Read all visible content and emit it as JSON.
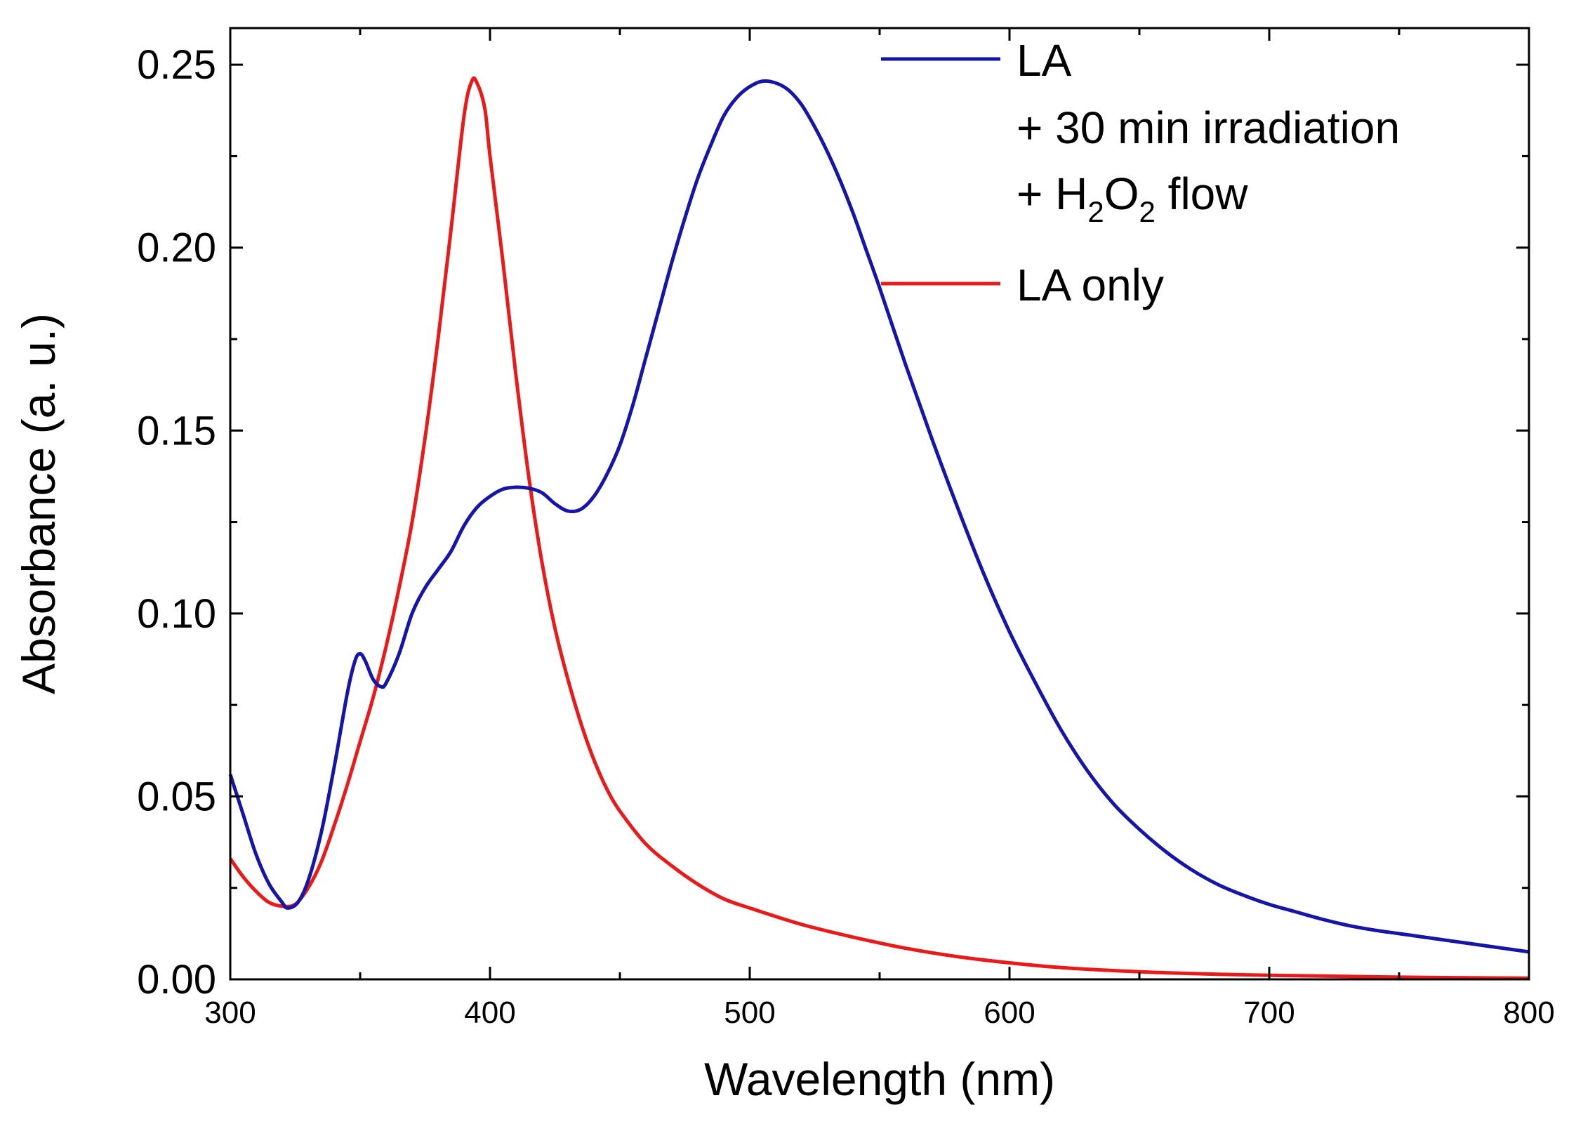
{
  "chart_data": {
    "type": "line",
    "title": "",
    "xlabel": "Wavelength (nm)",
    "ylabel": "Absorbance (a. u.)",
    "xlim": [
      300,
      800
    ],
    "ylim": [
      0,
      0.26
    ],
    "xticks": [
      300,
      400,
      500,
      600,
      700,
      800
    ],
    "xtick_labels": [
      "300",
      "400",
      "500",
      "600",
      "700",
      "800"
    ],
    "yticks": [
      0,
      0.05,
      0.1,
      0.15,
      0.2,
      0.25
    ],
    "ytick_labels": [
      "0.00",
      "0.05",
      "0.10",
      "0.15",
      "0.20",
      "0.25"
    ],
    "grid": false,
    "legend_position": "top-right",
    "series": [
      {
        "name": "LA + 30 min irradiation + H2O2 flow",
        "legend_lines": [
          "LA",
          "+ 30 min irradiation"
        ],
        "legend_flow_parts": [
          "+ H",
          "2",
          "O",
          "2",
          " flow"
        ],
        "color": "#1515a8",
        "points": [
          [
            300,
            0.056
          ],
          [
            305,
            0.045
          ],
          [
            310,
            0.034
          ],
          [
            315,
            0.026
          ],
          [
            320,
            0.021
          ],
          [
            322,
            0.0195
          ],
          [
            326,
            0.021
          ],
          [
            330,
            0.027
          ],
          [
            335,
            0.04
          ],
          [
            340,
            0.058
          ],
          [
            345,
            0.078
          ],
          [
            348,
            0.087
          ],
          [
            350,
            0.089
          ],
          [
            352,
            0.087
          ],
          [
            355,
            0.082
          ],
          [
            358,
            0.08
          ],
          [
            360,
            0.081
          ],
          [
            365,
            0.089
          ],
          [
            370,
            0.1
          ],
          [
            375,
            0.107
          ],
          [
            380,
            0.112
          ],
          [
            385,
            0.117
          ],
          [
            390,
            0.124
          ],
          [
            395,
            0.129
          ],
          [
            400,
            0.132
          ],
          [
            405,
            0.134
          ],
          [
            410,
            0.1345
          ],
          [
            415,
            0.1342
          ],
          [
            420,
            0.133
          ],
          [
            425,
            0.13
          ],
          [
            430,
            0.128
          ],
          [
            435,
            0.1285
          ],
          [
            440,
            0.132
          ],
          [
            445,
            0.138
          ],
          [
            450,
            0.146
          ],
          [
            455,
            0.157
          ],
          [
            460,
            0.17
          ],
          [
            465,
            0.183
          ],
          [
            470,
            0.196
          ],
          [
            475,
            0.208
          ],
          [
            480,
            0.219
          ],
          [
            485,
            0.228
          ],
          [
            490,
            0.236
          ],
          [
            495,
            0.241
          ],
          [
            500,
            0.244
          ],
          [
            505,
            0.2455
          ],
          [
            510,
            0.245
          ],
          [
            515,
            0.243
          ],
          [
            520,
            0.239
          ],
          [
            525,
            0.233
          ],
          [
            530,
            0.226
          ],
          [
            535,
            0.218
          ],
          [
            540,
            0.209
          ],
          [
            545,
            0.199
          ],
          [
            550,
            0.189
          ],
          [
            560,
            0.168
          ],
          [
            570,
            0.148
          ],
          [
            580,
            0.129
          ],
          [
            590,
            0.111
          ],
          [
            600,
            0.095
          ],
          [
            610,
            0.081
          ],
          [
            620,
            0.068
          ],
          [
            630,
            0.057
          ],
          [
            640,
            0.048
          ],
          [
            650,
            0.041
          ],
          [
            660,
            0.035
          ],
          [
            670,
            0.03
          ],
          [
            680,
            0.026
          ],
          [
            690,
            0.023
          ],
          [
            700,
            0.0205
          ],
          [
            710,
            0.0185
          ],
          [
            720,
            0.0165
          ],
          [
            730,
            0.0148
          ],
          [
            740,
            0.0135
          ],
          [
            750,
            0.0125
          ],
          [
            760,
            0.0115
          ],
          [
            770,
            0.0105
          ],
          [
            780,
            0.0095
          ],
          [
            790,
            0.0085
          ],
          [
            800,
            0.0075
          ]
        ]
      },
      {
        "name": "LA only",
        "legend_lines": [
          "LA only"
        ],
        "color": "#e81a1a",
        "points": [
          [
            300,
            0.033
          ],
          [
            305,
            0.028
          ],
          [
            310,
            0.024
          ],
          [
            315,
            0.021
          ],
          [
            320,
            0.02
          ],
          [
            325,
            0.0205
          ],
          [
            330,
            0.025
          ],
          [
            335,
            0.032
          ],
          [
            340,
            0.042
          ],
          [
            345,
            0.053
          ],
          [
            350,
            0.065
          ],
          [
            355,
            0.077
          ],
          [
            360,
            0.091
          ],
          [
            365,
            0.107
          ],
          [
            370,
            0.125
          ],
          [
            375,
            0.148
          ],
          [
            380,
            0.175
          ],
          [
            385,
            0.205
          ],
          [
            390,
            0.236
          ],
          [
            393,
            0.2455
          ],
          [
            395,
            0.245
          ],
          [
            398,
            0.238
          ],
          [
            400,
            0.225
          ],
          [
            405,
            0.196
          ],
          [
            410,
            0.165
          ],
          [
            415,
            0.137
          ],
          [
            420,
            0.114
          ],
          [
            425,
            0.096
          ],
          [
            430,
            0.082
          ],
          [
            435,
            0.07
          ],
          [
            440,
            0.06
          ],
          [
            445,
            0.052
          ],
          [
            450,
            0.046
          ],
          [
            460,
            0.037
          ],
          [
            470,
            0.031
          ],
          [
            480,
            0.026
          ],
          [
            490,
            0.022
          ],
          [
            500,
            0.0195
          ],
          [
            520,
            0.015
          ],
          [
            540,
            0.0115
          ],
          [
            560,
            0.0085
          ],
          [
            580,
            0.0062
          ],
          [
            600,
            0.0045
          ],
          [
            620,
            0.0032
          ],
          [
            640,
            0.0024
          ],
          [
            660,
            0.0018
          ],
          [
            680,
            0.0014
          ],
          [
            700,
            0.0011
          ],
          [
            720,
            0.0009
          ],
          [
            750,
            0.0006
          ],
          [
            780,
            0.0004
          ],
          [
            800,
            0.0003
          ]
        ]
      }
    ]
  }
}
